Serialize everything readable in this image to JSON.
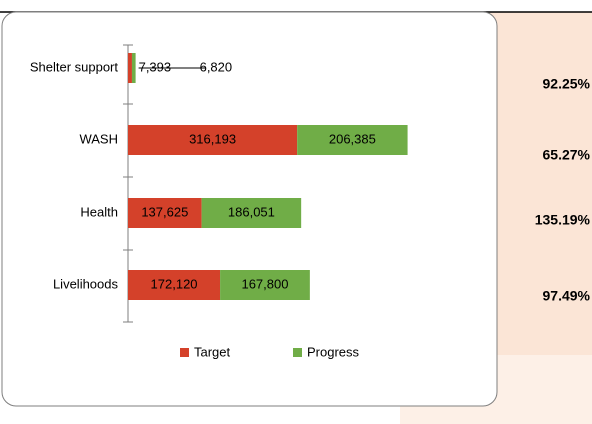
{
  "chart_data": {
    "type": "stacked-barh",
    "categories": [
      "Shelter support",
      "WASH",
      "Health",
      "Livelihoods"
    ],
    "series": [
      {
        "name": "Target",
        "color": "#d4412a",
        "values": [
          7393,
          316193,
          137625,
          172120
        ],
        "value_labels": [
          "7,393",
          "316,193",
          "137,625",
          "172,120"
        ]
      },
      {
        "name": "Progress",
        "color": "#70ad47",
        "values": [
          6820,
          206385,
          186051,
          167800
        ],
        "value_labels": [
          "6,820",
          "206,385",
          "186,051",
          "167,800"
        ]
      }
    ],
    "xlim": [
      0,
      600000
    ],
    "legend": "bottom"
  },
  "side_panel": {
    "labels": [
      "92.25%",
      "65.27%",
      "135.19%",
      "97.49%"
    ]
  }
}
